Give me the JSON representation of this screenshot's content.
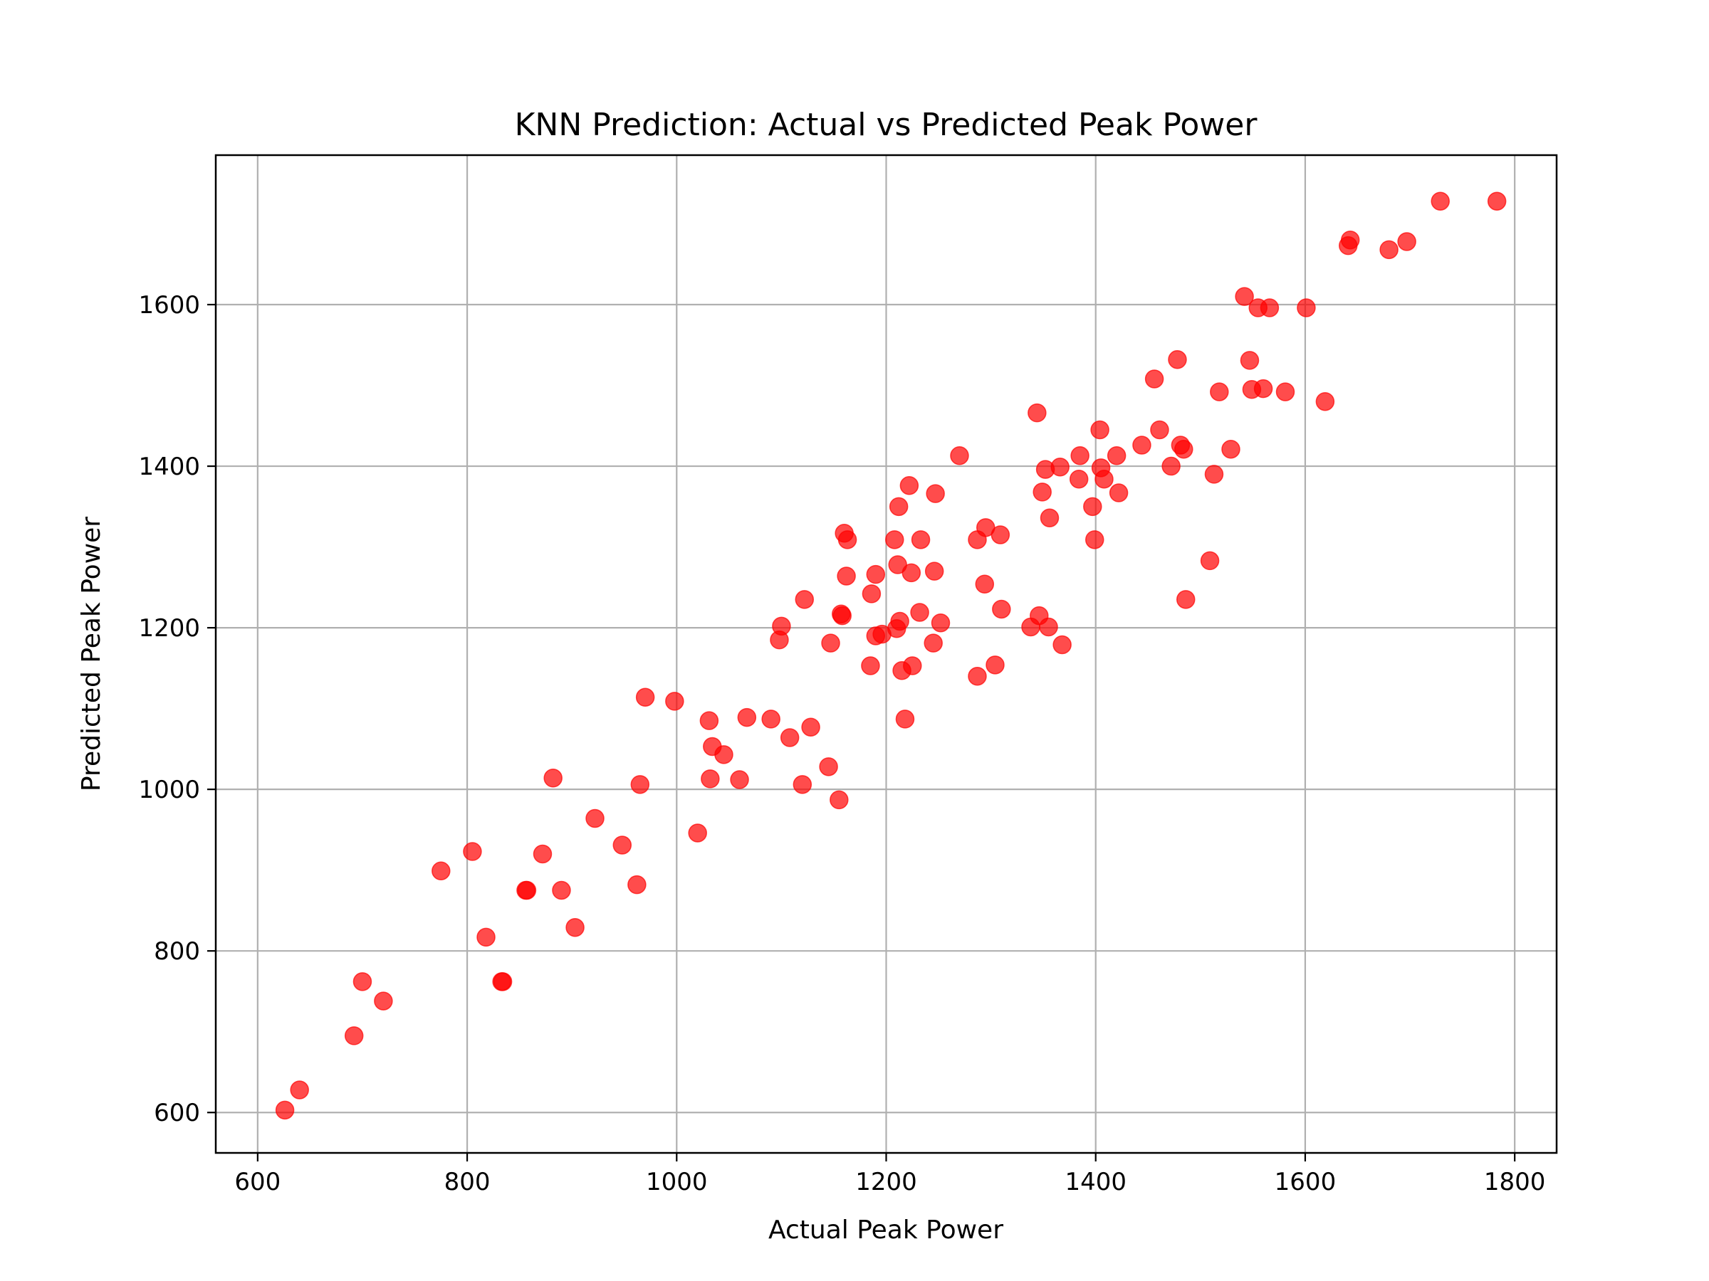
{
  "chart_data": {
    "type": "scatter",
    "title": "KNN Prediction: Actual vs Predicted Peak Power",
    "xlabel": "Actual Peak Power",
    "ylabel": "Predicted Peak Power",
    "xlim": [
      560,
      1840
    ],
    "ylim": [
      550,
      1785
    ],
    "xticks": [
      600,
      800,
      1000,
      1200,
      1400,
      1600,
      1800
    ],
    "yticks": [
      600,
      800,
      1000,
      1200,
      1400,
      1600
    ],
    "grid": true,
    "colors": {
      "marker": "#ff0000",
      "grid": "#b0b0b0",
      "axes": "#000000"
    },
    "series": [
      {
        "points": [
          [
            626,
            603
          ],
          [
            640,
            628
          ],
          [
            692,
            695
          ],
          [
            700,
            762
          ],
          [
            720,
            738
          ],
          [
            775,
            899
          ],
          [
            805,
            923
          ],
          [
            818,
            817
          ],
          [
            833,
            762
          ],
          [
            834,
            762
          ],
          [
            856,
            875
          ],
          [
            857,
            875
          ],
          [
            872,
            920
          ],
          [
            882,
            1014
          ],
          [
            890,
            875
          ],
          [
            903,
            829
          ],
          [
            922,
            964
          ],
          [
            948,
            931
          ],
          [
            962,
            882
          ],
          [
            965,
            1006
          ],
          [
            970,
            1114
          ],
          [
            998,
            1109
          ],
          [
            1020,
            946
          ],
          [
            1031,
            1085
          ],
          [
            1032,
            1013
          ],
          [
            1034,
            1053
          ],
          [
            1045,
            1043
          ],
          [
            1060,
            1012
          ],
          [
            1067,
            1089
          ],
          [
            1090,
            1087
          ],
          [
            1098,
            1185
          ],
          [
            1100,
            1202
          ],
          [
            1108,
            1064
          ],
          [
            1120,
            1006
          ],
          [
            1122,
            1235
          ],
          [
            1128,
            1077
          ],
          [
            1145,
            1028
          ],
          [
            1147,
            1181
          ],
          [
            1155,
            987
          ],
          [
            1157,
            1217
          ],
          [
            1158,
            1215
          ],
          [
            1160,
            1317
          ],
          [
            1162,
            1264
          ],
          [
            1163,
            1309
          ],
          [
            1185,
            1153
          ],
          [
            1186,
            1242
          ],
          [
            1190,
            1190
          ],
          [
            1190,
            1266
          ],
          [
            1196,
            1192
          ],
          [
            1208,
            1309
          ],
          [
            1210,
            1199
          ],
          [
            1211,
            1278
          ],
          [
            1212,
            1350
          ],
          [
            1213,
            1208
          ],
          [
            1215,
            1147
          ],
          [
            1218,
            1087
          ],
          [
            1222,
            1376
          ],
          [
            1224,
            1268
          ],
          [
            1225,
            1153
          ],
          [
            1232,
            1219
          ],
          [
            1233,
            1309
          ],
          [
            1245,
            1181
          ],
          [
            1246,
            1270
          ],
          [
            1247,
            1366
          ],
          [
            1252,
            1206
          ],
          [
            1270,
            1413
          ],
          [
            1287,
            1140
          ],
          [
            1287,
            1309
          ],
          [
            1294,
            1254
          ],
          [
            1295,
            1324
          ],
          [
            1304,
            1154
          ],
          [
            1309,
            1315
          ],
          [
            1310,
            1223
          ],
          [
            1338,
            1201
          ],
          [
            1344,
            1466
          ],
          [
            1346,
            1215
          ],
          [
            1349,
            1368
          ],
          [
            1352,
            1396
          ],
          [
            1355,
            1201
          ],
          [
            1356,
            1336
          ],
          [
            1366,
            1399
          ],
          [
            1368,
            1179
          ],
          [
            1384,
            1384
          ],
          [
            1385,
            1413
          ],
          [
            1397,
            1350
          ],
          [
            1399,
            1309
          ],
          [
            1404,
            1445
          ],
          [
            1405,
            1398
          ],
          [
            1408,
            1384
          ],
          [
            1420,
            1413
          ],
          [
            1422,
            1367
          ],
          [
            1444,
            1426
          ],
          [
            1456,
            1508
          ],
          [
            1461,
            1445
          ],
          [
            1472,
            1400
          ],
          [
            1478,
            1532
          ],
          [
            1481,
            1426
          ],
          [
            1484,
            1421
          ],
          [
            1486,
            1235
          ],
          [
            1509,
            1283
          ],
          [
            1513,
            1390
          ],
          [
            1518,
            1492
          ],
          [
            1529,
            1421
          ],
          [
            1542,
            1610
          ],
          [
            1547,
            1531
          ],
          [
            1549,
            1495
          ],
          [
            1555,
            1596
          ],
          [
            1560,
            1496
          ],
          [
            1566,
            1596
          ],
          [
            1581,
            1492
          ],
          [
            1601,
            1596
          ],
          [
            1619,
            1480
          ],
          [
            1641,
            1673
          ],
          [
            1643,
            1680
          ],
          [
            1680,
            1668
          ],
          [
            1697,
            1678
          ],
          [
            1729,
            1728
          ],
          [
            1783,
            1728
          ]
        ]
      }
    ]
  }
}
